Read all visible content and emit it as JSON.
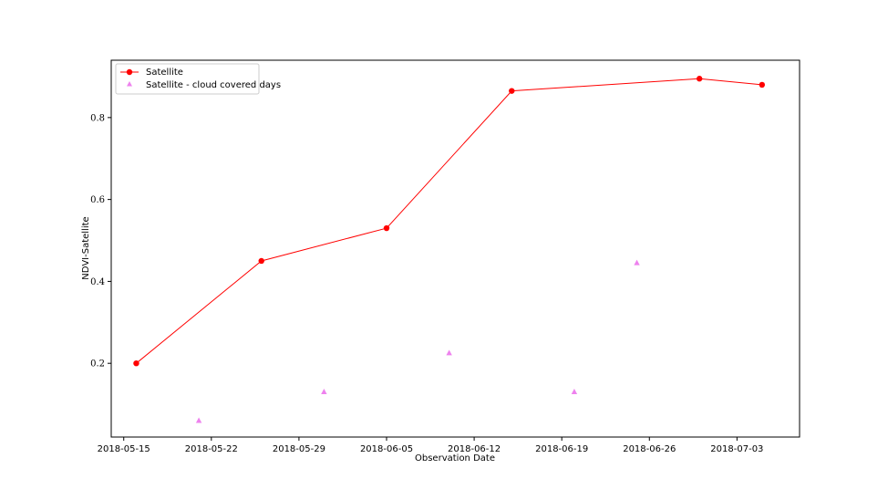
{
  "chart_data": {
    "type": "line",
    "xlabel": "Observation Date",
    "ylabel": "NDVI-Satellite",
    "xlim": [
      "2018-05-14",
      "2018-07-08"
    ],
    "ylim": [
      0.02,
      0.94
    ],
    "x_ticks": [
      "2018-05-15",
      "2018-05-22",
      "2018-05-29",
      "2018-06-05",
      "2018-06-12",
      "2018-06-19",
      "2018-06-26",
      "2018-07-03"
    ],
    "y_ticks": [
      0.2,
      0.4,
      0.6,
      0.8
    ],
    "y_tick_labels": [
      "0.2",
      "0.4",
      "0.6",
      "0.8"
    ],
    "legend_position": "top-left",
    "series": [
      {
        "name": "Satellite",
        "color": "#ff0000",
        "marker": "circle",
        "line": true,
        "points": [
          {
            "x": "2018-05-16",
            "y": 0.2
          },
          {
            "x": "2018-05-26",
            "y": 0.45
          },
          {
            "x": "2018-06-05",
            "y": 0.53
          },
          {
            "x": "2018-06-15",
            "y": 0.865
          },
          {
            "x": "2018-06-30",
            "y": 0.895
          },
          {
            "x": "2018-07-05",
            "y": 0.88
          }
        ]
      },
      {
        "name": "Satellite - cloud covered days",
        "color": "#ee82ee",
        "marker": "triangle",
        "line": false,
        "points": [
          {
            "x": "2018-05-21",
            "y": 0.06
          },
          {
            "x": "2018-05-31",
            "y": 0.13
          },
          {
            "x": "2018-06-10",
            "y": 0.225
          },
          {
            "x": "2018-06-20",
            "y": 0.13
          },
          {
            "x": "2018-06-25",
            "y": 0.445
          }
        ]
      }
    ]
  }
}
